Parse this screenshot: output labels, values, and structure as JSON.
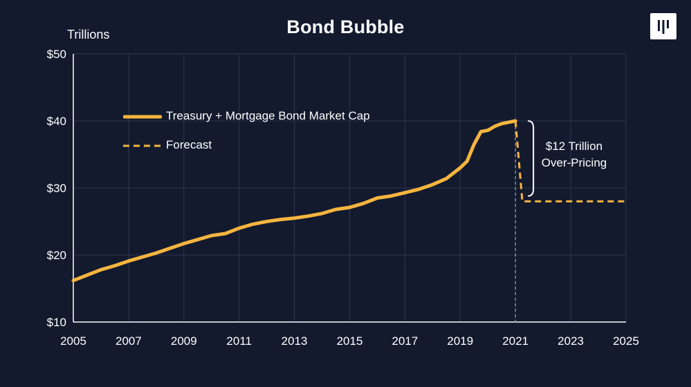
{
  "header": {
    "title": "Bond Bubble",
    "unit_label": "Trillions"
  },
  "logo": {
    "icon": "brand-logo-icon"
  },
  "annotation": {
    "line1": "$12 Trillion",
    "line2": "Over-Pricing"
  },
  "colors": {
    "background": "#131a2e",
    "series": "#f6b53f",
    "grid": "#2e3650",
    "axis": "#ffffff",
    "divider": "#8a8f9c",
    "text": "#ffffff"
  },
  "chart_data": {
    "type": "line",
    "title": "Bond Bubble",
    "ylabel": "Trillions",
    "xlabel": "",
    "xlim": [
      2005,
      2025
    ],
    "ylim": [
      10,
      50
    ],
    "x_ticks": [
      "2005",
      "2007",
      "2009",
      "2011",
      "2013",
      "2015",
      "2017",
      "2019",
      "2021",
      "2023",
      "2025"
    ],
    "y_ticks": [
      "$10",
      "$20",
      "$30",
      "$40",
      "$50"
    ],
    "grid": true,
    "legend_position": "upper-left",
    "vertical_marker_x": 2021,
    "series": [
      {
        "name": "Treasury + Mortgage Bond Market Cap",
        "style": "solid",
        "points": [
          [
            2005.0,
            16.2
          ],
          [
            2005.5,
            17.0
          ],
          [
            2006.0,
            17.8
          ],
          [
            2006.5,
            18.4
          ],
          [
            2007.0,
            19.1
          ],
          [
            2007.5,
            19.7
          ],
          [
            2008.0,
            20.3
          ],
          [
            2008.5,
            21.0
          ],
          [
            2009.0,
            21.7
          ],
          [
            2009.5,
            22.3
          ],
          [
            2010.0,
            22.9
          ],
          [
            2010.5,
            23.2
          ],
          [
            2011.0,
            24.0
          ],
          [
            2011.5,
            24.6
          ],
          [
            2012.0,
            25.0
          ],
          [
            2012.5,
            25.3
          ],
          [
            2013.0,
            25.5
          ],
          [
            2013.5,
            25.8
          ],
          [
            2014.0,
            26.2
          ],
          [
            2014.5,
            26.8
          ],
          [
            2015.0,
            27.1
          ],
          [
            2015.5,
            27.7
          ],
          [
            2016.0,
            28.5
          ],
          [
            2016.5,
            28.8
          ],
          [
            2017.0,
            29.3
          ],
          [
            2017.5,
            29.8
          ],
          [
            2018.0,
            30.5
          ],
          [
            2018.5,
            31.4
          ],
          [
            2019.0,
            33.0
          ],
          [
            2019.25,
            34.0
          ],
          [
            2019.5,
            36.5
          ],
          [
            2019.75,
            38.4
          ],
          [
            2020.0,
            38.6
          ],
          [
            2020.25,
            39.2
          ],
          [
            2020.5,
            39.6
          ],
          [
            2020.75,
            39.8
          ],
          [
            2021.0,
            40.0
          ]
        ]
      },
      {
        "name": "Forecast",
        "style": "dashed",
        "points": [
          [
            2021.0,
            40.0
          ],
          [
            2021.25,
            28.0
          ],
          [
            2025.0,
            28.0
          ]
        ]
      }
    ]
  }
}
